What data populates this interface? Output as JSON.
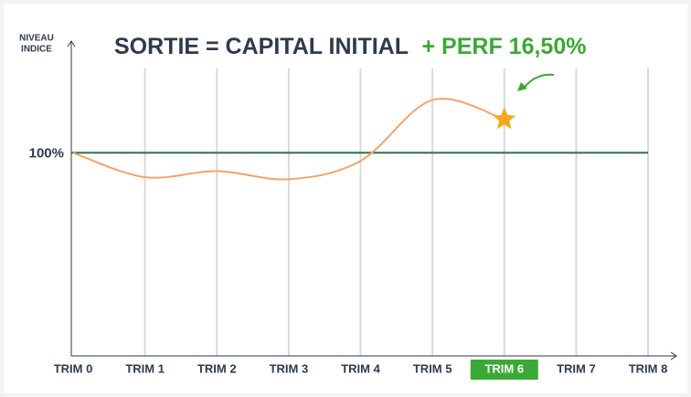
{
  "chart_data": {
    "type": "line",
    "title": [
      "SORTIE =  CAPITAL INITIAL",
      "+ PERF 16,50%"
    ],
    "title_colors": [
      "#2e3a4f",
      "#3aa935"
    ],
    "y_label": [
      "NIVEAU",
      "INDICE"
    ],
    "categories": [
      "TRIM 0",
      "TRIM 1",
      "TRIM 2",
      "TRIM 3",
      "TRIM 4",
      "TRIM 5",
      "TRIM 6",
      "TRIM 7",
      "TRIM 8"
    ],
    "series": [
      {
        "color": "#f4a46a",
        "values": [
          100,
          88,
          91,
          87,
          96,
          126,
          116.5,
          null,
          null
        ]
      }
    ],
    "marker_color": "#f5a81c",
    "ylim": [
      0,
      155
    ],
    "yticks": [
      {
        "value": 100,
        "label": "100%"
      }
    ],
    "reference_color": "#2f6b4f",
    "highlight_index": 6,
    "highlight_color": "#3aa935",
    "grid": true
  }
}
